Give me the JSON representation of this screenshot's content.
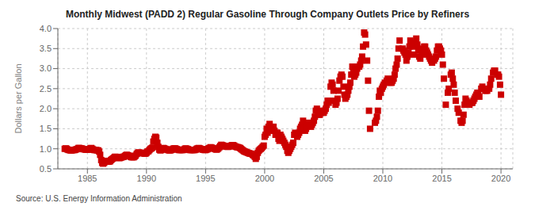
{
  "chart_data": {
    "type": "scatter",
    "title": "Monthly Midwest (PADD 2) Regular Gasoline Through Company Outlets Price by Refiners",
    "ylabel": "Dollars per Gallon",
    "annotations": [
      "Source: U.S. Energy Information Administration"
    ],
    "color": "#cc0000",
    "marker": "square",
    "grid": true,
    "xlim": [
      1982.5,
      2021
    ],
    "ylim": [
      0.5,
      4.0
    ],
    "xticks": [
      1985,
      1990,
      1995,
      2000,
      2005,
      2010,
      2015,
      2020
    ],
    "yticks": [
      0.5,
      {
        "value": 1.0,
        "label": "1.0"
      },
      1.5,
      {
        "value": 2.0,
        "label": "2.0"
      },
      2.5,
      {
        "value": 3.0,
        "label": "3.0"
      },
      3.5,
      {
        "value": 4.0,
        "label": "4.0"
      }
    ],
    "x": [
      1983.08,
      1983.17,
      1983.25,
      1983.33,
      1983.42,
      1983.5,
      1983.58,
      1983.67,
      1983.75,
      1983.83,
      1983.92,
      1984.0,
      1984.08,
      1984.17,
      1984.25,
      1984.33,
      1984.42,
      1984.5,
      1984.58,
      1984.67,
      1984.75,
      1984.83,
      1984.92,
      1985.0,
      1985.08,
      1985.17,
      1985.25,
      1985.33,
      1985.42,
      1985.5,
      1985.58,
      1985.67,
      1985.75,
      1985.83,
      1985.92,
      1986.0,
      1986.08,
      1986.17,
      1986.25,
      1986.33,
      1986.42,
      1986.5,
      1986.58,
      1986.67,
      1986.75,
      1986.83,
      1986.92,
      1987.0,
      1987.08,
      1987.17,
      1987.25,
      1987.33,
      1987.42,
      1987.5,
      1987.58,
      1987.67,
      1987.75,
      1987.83,
      1987.92,
      1988.0,
      1988.08,
      1988.17,
      1988.25,
      1988.33,
      1988.42,
      1988.5,
      1988.58,
      1988.67,
      1988.75,
      1988.83,
      1988.92,
      1989.0,
      1989.08,
      1989.17,
      1989.25,
      1989.33,
      1989.42,
      1989.5,
      1989.58,
      1989.67,
      1989.75,
      1989.83,
      1989.92,
      1990.0,
      1990.08,
      1990.17,
      1990.25,
      1990.33,
      1990.42,
      1990.5,
      1990.58,
      1990.67,
      1990.75,
      1990.83,
      1990.92,
      1991.0,
      1991.08,
      1991.17,
      1991.25,
      1991.33,
      1991.42,
      1991.5,
      1991.58,
      1991.67,
      1991.75,
      1991.83,
      1991.92,
      1992.0,
      1992.08,
      1992.17,
      1992.25,
      1992.33,
      1992.42,
      1992.5,
      1992.58,
      1992.67,
      1992.75,
      1992.83,
      1992.92,
      1993.0,
      1993.08,
      1993.17,
      1993.25,
      1993.33,
      1993.42,
      1993.5,
      1993.58,
      1993.67,
      1993.75,
      1993.83,
      1993.92,
      1994.0,
      1994.08,
      1994.17,
      1994.25,
      1994.33,
      1994.42,
      1994.5,
      1994.58,
      1994.67,
      1994.75,
      1994.83,
      1994.92,
      1995.0,
      1995.08,
      1995.17,
      1995.25,
      1995.33,
      1995.42,
      1995.5,
      1995.58,
      1995.67,
      1995.75,
      1995.83,
      1995.92,
      1996.0,
      1996.08,
      1996.17,
      1996.25,
      1996.33,
      1996.42,
      1996.5,
      1996.58,
      1996.67,
      1996.75,
      1996.83,
      1996.92,
      1997.0,
      1997.08,
      1997.17,
      1997.25,
      1997.33,
      1997.42,
      1997.5,
      1997.58,
      1997.67,
      1997.75,
      1997.83,
      1997.92,
      1998.0,
      1998.08,
      1998.17,
      1998.25,
      1998.33,
      1998.42,
      1998.5,
      1998.58,
      1998.67,
      1998.75,
      1998.83,
      1998.92,
      1999.0,
      1999.08,
      1999.17,
      1999.25,
      1999.33,
      1999.42,
      1999.5,
      1999.58,
      1999.67,
      1999.75,
      1999.83,
      1999.92,
      2000.0,
      2000.08,
      2000.17,
      2000.25,
      2000.33,
      2000.42,
      2000.5,
      2000.58,
      2000.67,
      2000.75,
      2000.83,
      2000.92,
      2001.0,
      2001.08,
      2001.17,
      2001.25,
      2001.33,
      2001.42,
      2001.5,
      2001.58,
      2001.67,
      2001.75,
      2001.83,
      2001.92,
      2002.0,
      2002.08,
      2002.17,
      2002.25,
      2002.33,
      2002.42,
      2002.5,
      2002.58,
      2002.67,
      2002.75,
      2002.83,
      2002.92,
      2003.0,
      2003.08,
      2003.17,
      2003.25,
      2003.33,
      2003.42,
      2003.5,
      2003.58,
      2003.67,
      2003.75,
      2003.83,
      2003.92,
      2004.0,
      2004.08,
      2004.17,
      2004.25,
      2004.33,
      2004.42,
      2004.5,
      2004.58,
      2004.67,
      2004.75,
      2004.83,
      2004.92,
      2005.0,
      2005.08,
      2005.17,
      2005.25,
      2005.33,
      2005.42,
      2005.5,
      2005.58,
      2005.67,
      2005.75,
      2005.83,
      2005.92,
      2006.0,
      2006.08,
      2006.17,
      2006.25,
      2006.33,
      2006.42,
      2006.5,
      2006.58,
      2006.67,
      2006.75,
      2006.83,
      2006.92,
      2007.0,
      2007.08,
      2007.17,
      2007.25,
      2007.33,
      2007.42,
      2007.5,
      2007.58,
      2007.67,
      2007.75,
      2007.83,
      2007.92,
      2008.0,
      2008.08,
      2008.17,
      2008.25,
      2008.33,
      2008.42,
      2008.5,
      2008.58,
      2008.67,
      2008.75,
      2008.83,
      2008.92,
      2009.33,
      2009.42,
      2009.5,
      2009.58,
      2009.67,
      2009.75,
      2009.83,
      2009.92,
      2010.0,
      2010.08,
      2010.17,
      2010.33,
      2010.42,
      2010.5,
      2010.58,
      2010.67,
      2010.75,
      2010.83,
      2010.92,
      2011.0,
      2011.08,
      2011.17,
      2011.25,
      2011.33,
      2011.42,
      2011.67,
      2011.75,
      2011.83,
      2011.92,
      2012.0,
      2012.08,
      2012.17,
      2012.25,
      2012.33,
      2012.5,
      2012.58,
      2012.75,
      2012.83,
      2012.92,
      2013.0,
      2013.08,
      2013.17,
      2013.33,
      2013.42,
      2013.5,
      2013.58,
      2013.67,
      2013.75,
      2013.83,
      2013.92,
      2014.0,
      2014.08,
      2014.17,
      2014.33,
      2014.42,
      2014.5,
      2014.58,
      2014.67,
      2014.75,
      2014.83,
      2014.92,
      2015.0,
      2015.08,
      2015.17,
      2015.33,
      2015.5,
      2015.58,
      2015.75,
      2015.83,
      2015.92,
      2016.0,
      2016.08,
      2016.17,
      2016.33,
      2016.42,
      2016.58,
      2016.67,
      2016.75,
      2016.83,
      2016.92,
      2017.0,
      2017.08,
      2017.17,
      2017.33,
      2017.42,
      2017.5,
      2017.58,
      2017.67,
      2017.75,
      2017.83,
      2017.92,
      2018.0,
      2018.08,
      2018.17,
      2018.33,
      2018.42,
      2018.5,
      2018.67,
      2018.75,
      2018.83,
      2019.0,
      2019.08,
      2019.17,
      2019.33,
      2019.42,
      2019.5,
      2019.67,
      2019.75,
      2019.83,
      2019.92,
      2020.0
    ],
    "values": [
      1.0,
      1.01,
      1.0,
      0.98,
      0.97,
      0.97,
      0.96,
      0.96,
      0.97,
      0.97,
      0.97,
      0.98,
      0.99,
      1.0,
      1.02,
      1.02,
      1.01,
      1.01,
      1.0,
      0.99,
      0.99,
      0.98,
      0.98,
      0.98,
      0.98,
      0.99,
      1.01,
      1.02,
      1.0,
      0.98,
      0.97,
      0.97,
      0.97,
      0.96,
      0.96,
      0.93,
      0.85,
      0.72,
      0.65,
      0.63,
      0.65,
      0.68,
      0.7,
      0.69,
      0.68,
      0.68,
      0.69,
      0.72,
      0.74,
      0.76,
      0.78,
      0.8,
      0.8,
      0.79,
      0.78,
      0.77,
      0.77,
      0.78,
      0.79,
      0.8,
      0.8,
      0.82,
      0.84,
      0.85,
      0.84,
      0.83,
      0.82,
      0.8,
      0.79,
      0.79,
      0.79,
      0.81,
      0.83,
      0.87,
      0.9,
      0.91,
      0.9,
      0.89,
      0.89,
      0.9,
      0.9,
      0.88,
      0.88,
      0.9,
      0.93,
      0.94,
      0.97,
      1.0,
      1.01,
      1.03,
      1.18,
      1.25,
      1.3,
      1.28,
      1.15,
      1.05,
      0.98,
      0.96,
      0.97,
      1.0,
      1.02,
      1.01,
      1.0,
      0.99,
      0.98,
      0.97,
      0.96,
      0.96,
      0.97,
      0.98,
      1.0,
      1.01,
      1.01,
      1.0,
      0.99,
      0.98,
      0.97,
      0.97,
      0.97,
      0.97,
      0.97,
      0.98,
      1.0,
      1.01,
      1.0,
      0.99,
      0.98,
      0.97,
      0.97,
      0.97,
      0.97,
      0.97,
      0.97,
      0.98,
      1.0,
      1.01,
      1.02,
      1.01,
      1.0,
      0.99,
      0.98,
      0.98,
      0.97,
      0.97,
      0.98,
      0.99,
      1.01,
      1.02,
      1.04,
      1.03,
      1.02,
      1.01,
      1.0,
      0.99,
      0.98,
      0.99,
      1.01,
      1.04,
      1.07,
      1.1,
      1.09,
      1.08,
      1.07,
      1.06,
      1.06,
      1.05,
      1.05,
      1.06,
      1.07,
      1.08,
      1.09,
      1.09,
      1.08,
      1.06,
      1.05,
      1.04,
      1.04,
      1.03,
      1.02,
      1.0,
      0.98,
      0.96,
      0.94,
      0.93,
      0.92,
      0.91,
      0.9,
      0.89,
      0.88,
      0.88,
      0.87,
      0.85,
      0.83,
      0.8,
      0.75,
      0.8,
      0.9,
      0.95,
      0.98,
      1.0,
      1.02,
      1.05,
      1.08,
      1.3,
      1.35,
      1.5,
      1.4,
      1.55,
      1.62,
      1.55,
      1.45,
      1.5,
      1.55,
      1.45,
      1.35,
      1.4,
      1.4,
      1.25,
      1.2,
      1.35,
      1.3,
      1.25,
      1.2,
      1.15,
      1.1,
      1.05,
      0.95,
      0.9,
      0.95,
      1.0,
      1.05,
      1.1,
      1.15,
      1.35,
      1.4,
      1.35,
      1.3,
      1.35,
      1.4,
      1.5,
      1.55,
      1.6,
      1.7,
      1.55,
      1.45,
      1.5,
      1.55,
      1.6,
      1.65,
      1.6,
      1.55,
      1.6,
      1.65,
      1.7,
      1.8,
      1.95,
      2.0,
      1.9,
      1.85,
      1.85,
      1.9,
      1.95,
      1.9,
      1.9,
      1.95,
      2.0,
      2.1,
      2.2,
      2.15,
      2.2,
      2.55,
      2.65,
      2.6,
      2.45,
      2.2,
      2.1,
      2.15,
      2.25,
      2.45,
      2.7,
      2.8,
      2.85,
      2.8,
      2.55,
      2.35,
      2.25,
      2.3,
      2.35,
      2.45,
      2.55,
      2.65,
      2.85,
      3.05,
      2.95,
      2.8,
      2.85,
      2.9,
      3.0,
      3.05,
      3.05,
      3.1,
      3.2,
      3.3,
      3.55,
      3.9,
      3.85,
      3.6,
      3.2,
      2.7,
      1.95,
      1.5,
      1.65,
      1.7,
      1.8,
      1.95,
      2.3,
      2.45,
      2.4,
      2.5,
      2.55,
      2.6,
      2.65,
      2.7,
      2.75,
      2.7,
      2.65,
      2.65,
      2.65,
      2.7,
      2.75,
      2.85,
      3.0,
      3.1,
      3.25,
      3.5,
      3.7,
      3.5,
      3.45,
      3.4,
      3.35,
      3.2,
      3.3,
      3.4,
      3.55,
      3.7,
      3.55,
      3.35,
      3.65,
      3.75,
      3.6,
      3.45,
      3.3,
      3.25,
      3.35,
      3.5,
      3.55,
      3.55,
      3.45,
      3.4,
      3.35,
      3.3,
      3.25,
      3.2,
      3.15,
      3.2,
      3.25,
      3.3,
      3.45,
      3.55,
      3.55,
      3.5,
      3.45,
      3.35,
      3.1,
      2.75,
      2.1,
      2.4,
      2.5,
      2.85,
      2.9,
      2.75,
      2.6,
      2.4,
      2.2,
      2.0,
      1.9,
      1.7,
      1.65,
      1.7,
      1.85,
      2.1,
      2.25,
      2.2,
      2.15,
      2.1,
      2.15,
      2.15,
      2.15,
      2.2,
      2.25,
      2.3,
      2.35,
      2.4,
      2.35,
      2.3,
      2.5,
      2.55,
      2.5,
      2.45,
      2.45,
      2.45,
      2.5,
      2.6,
      2.75,
      2.9,
      2.95,
      2.95,
      2.85,
      2.85,
      2.8,
      2.6,
      2.35
    ]
  }
}
